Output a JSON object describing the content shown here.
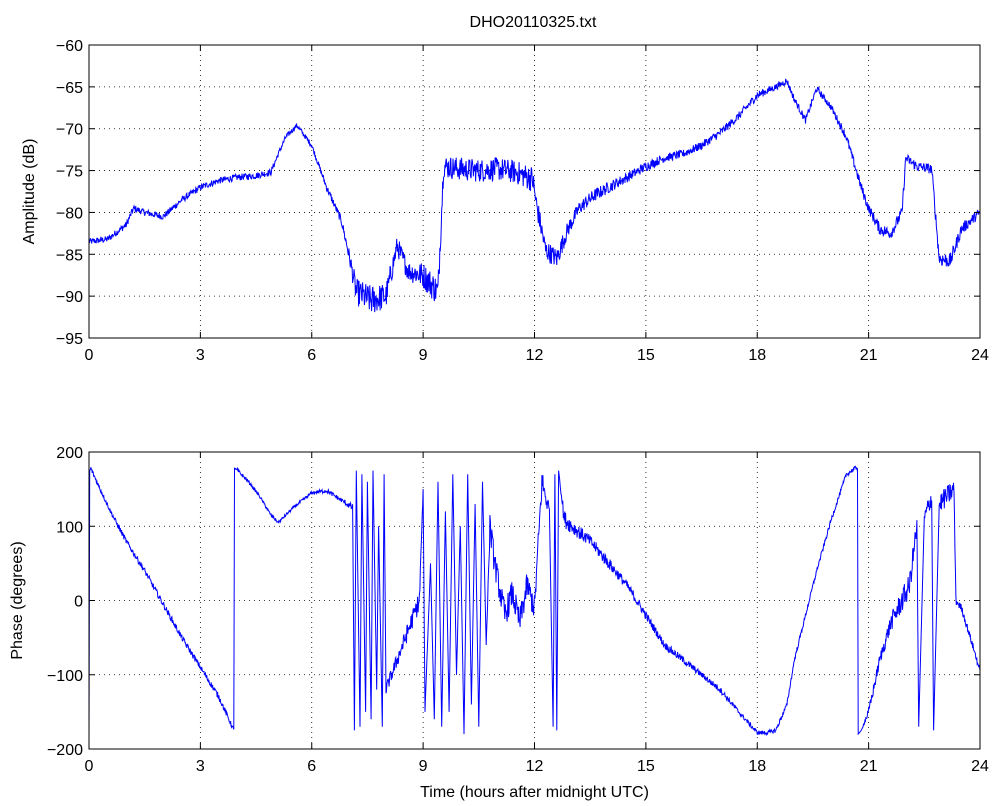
{
  "page": {
    "title": "DHO20110325.txt"
  },
  "colors": {
    "series": "#0000ff",
    "axes": "#000000",
    "background": "#ffffff"
  },
  "chart_data": [
    {
      "id": "amplitude",
      "type": "line",
      "title": "DHO20110325.txt",
      "xlabel": "",
      "ylabel": "Amplitude (dB)",
      "xlim": [
        0,
        24
      ],
      "ylim": [
        -95,
        -60
      ],
      "xticks": [
        0,
        3,
        6,
        9,
        12,
        15,
        18,
        21,
        24
      ],
      "yticks": [
        -95,
        -90,
        -85,
        -80,
        -75,
        -70,
        -65,
        -60
      ],
      "grid": true,
      "legend": "none",
      "series": [
        {
          "color": "#0000ff",
          "x": [
            0,
            0.5,
            1.0,
            1.2,
            1.5,
            2.0,
            2.5,
            3.0,
            3.5,
            4.0,
            4.5,
            4.9,
            5.1,
            5.3,
            5.6,
            6.0,
            6.4,
            6.8,
            7.0,
            7.2,
            7.6,
            8.0,
            8.3,
            8.6,
            9.0,
            9.4,
            9.55,
            10.0,
            10.5,
            11.0,
            11.5,
            11.95,
            12.05,
            12.3,
            12.6,
            12.9,
            13.2,
            13.6,
            14.0,
            14.5,
            15.0,
            15.5,
            16.0,
            16.5,
            17.0,
            17.5,
            18.0,
            18.5,
            18.8,
            19.0,
            19.3,
            19.6,
            20.0,
            20.4,
            20.8,
            21.0,
            21.3,
            21.6,
            21.9,
            22.0,
            22.3,
            22.7,
            22.9,
            23.2,
            23.5,
            24.0
          ],
          "y": [
            -83.5,
            -83.2,
            -81.5,
            -79.5,
            -80.0,
            -80.5,
            -78.5,
            -77.0,
            -76.2,
            -75.8,
            -75.6,
            -75.2,
            -73.0,
            -71.0,
            -69.6,
            -72.0,
            -77.0,
            -81.0,
            -85.0,
            -89.5,
            -90.5,
            -90.0,
            -84.0,
            -87.0,
            -87.5,
            -89.5,
            -74.5,
            -74.8,
            -75.0,
            -74.8,
            -75.2,
            -76.0,
            -79.0,
            -84.5,
            -85.5,
            -82.0,
            -79.5,
            -78.0,
            -77.0,
            -75.8,
            -74.5,
            -73.5,
            -73.0,
            -72.0,
            -70.5,
            -68.5,
            -66.0,
            -65.0,
            -64.3,
            -66.5,
            -69.0,
            -65.2,
            -67.5,
            -71.0,
            -77.0,
            -79.5,
            -82.0,
            -82.5,
            -80.0,
            -73.5,
            -74.5,
            -74.8,
            -85.5,
            -85.8,
            -82.0,
            -80.0
          ],
          "noise": [
            0.4,
            0.4,
            0.4,
            0.4,
            0.4,
            0.4,
            0.4,
            0.4,
            0.4,
            0.4,
            0.4,
            0.4,
            0.3,
            0.3,
            0.3,
            0.3,
            0.4,
            0.5,
            0.8,
            1.6,
            1.8,
            1.6,
            1.2,
            1.2,
            1.6,
            1.8,
            1.4,
            1.4,
            1.4,
            1.4,
            1.4,
            1.6,
            1.4,
            1.2,
            1.2,
            1.0,
            0.8,
            0.8,
            0.7,
            0.6,
            0.6,
            0.5,
            0.5,
            0.5,
            0.5,
            0.5,
            0.5,
            0.4,
            0.4,
            0.4,
            0.4,
            0.4,
            0.4,
            0.5,
            0.6,
            0.6,
            0.7,
            0.7,
            0.7,
            0.6,
            0.6,
            0.6,
            0.9,
            0.9,
            0.7,
            0.6
          ]
        }
      ]
    },
    {
      "id": "phase",
      "type": "line",
      "title": "",
      "xlabel": "Time (hours after midnight UTC)",
      "ylabel": "Phase (degrees)",
      "xlim": [
        0,
        24
      ],
      "ylim": [
        -200,
        200
      ],
      "xticks": [
        0,
        3,
        6,
        9,
        12,
        15,
        18,
        21,
        24
      ],
      "yticks": [
        -200,
        -100,
        0,
        100,
        200
      ],
      "grid": true,
      "legend": "none",
      "series": [
        {
          "color": "#0000ff",
          "x": [
            0,
            0.02,
            0.05,
            0.1,
            0.3,
            0.6,
            1.0,
            1.5,
            2.0,
            2.5,
            3.0,
            3.5,
            3.9,
            3.92,
            4.0,
            4.3,
            4.6,
            4.9,
            5.1,
            5.5,
            6.0,
            6.4,
            6.8,
            7.1,
            7.15,
            7.2,
            7.3,
            7.35,
            7.45,
            7.5,
            7.6,
            7.65,
            7.75,
            7.8,
            7.9,
            7.95,
            8.0,
            8.3,
            8.6,
            8.9,
            9.0,
            9.05,
            9.2,
            9.3,
            9.4,
            9.5,
            9.6,
            9.7,
            9.8,
            9.9,
            10.0,
            10.1,
            10.2,
            10.3,
            10.4,
            10.5,
            10.6,
            10.7,
            10.8,
            10.9,
            11.0,
            11.2,
            11.4,
            11.6,
            11.8,
            12.0,
            12.2,
            12.4,
            12.5,
            12.55,
            12.6,
            12.65,
            12.8,
            13.0,
            13.5,
            14.0,
            14.5,
            15.0,
            15.5,
            16.0,
            16.5,
            17.0,
            17.5,
            18.0,
            18.3,
            18.5,
            18.8,
            19.0,
            19.3,
            19.6,
            20.0,
            20.4,
            20.7,
            20.72,
            20.8,
            21.0,
            21.3,
            21.6,
            21.9,
            22.1,
            22.3,
            22.35,
            22.5,
            22.7,
            22.75,
            22.9,
            23.1,
            23.3,
            23.35,
            23.5,
            23.8,
            24.0
          ],
          "y": [
            -180,
            175,
            178,
            172,
            150,
            118,
            80,
            40,
            -5,
            -50,
            -90,
            -130,
            -175,
            178,
            175,
            160,
            140,
            115,
            105,
            125,
            145,
            148,
            135,
            125,
            -175,
            175,
            -170,
            170,
            -150,
            160,
            -160,
            175,
            -120,
            100,
            -170,
            170,
            -120,
            -80,
            -40,
            0,
            150,
            -150,
            50,
            -160,
            160,
            -170,
            120,
            -150,
            170,
            -100,
            100,
            -180,
            170,
            -140,
            130,
            -170,
            160,
            -60,
            100,
            60,
            30,
            -20,
            10,
            -30,
            20,
            -10,
            160,
            120,
            -170,
            170,
            -175,
            175,
            110,
            100,
            80,
            50,
            20,
            -20,
            -60,
            -80,
            -100,
            -120,
            -150,
            -178,
            -178,
            -175,
            -140,
            -80,
            -20,
            40,
            110,
            170,
            180,
            -180,
            -175,
            -150,
            -80,
            -30,
            0,
            20,
            100,
            -170,
            110,
            140,
            -175,
            130,
            140,
            150,
            0,
            -10,
            -60,
            -95
          ],
          "noise": [
            0,
            0,
            3,
            3,
            3,
            3,
            4,
            4,
            4,
            4,
            4,
            4,
            3,
            0,
            3,
            2,
            2,
            2,
            2,
            2,
            2,
            3,
            3,
            5,
            0,
            0,
            0,
            0,
            0,
            0,
            0,
            0,
            0,
            0,
            0,
            0,
            8,
            10,
            12,
            14,
            0,
            0,
            0,
            0,
            0,
            0,
            0,
            0,
            0,
            0,
            0,
            0,
            0,
            0,
            0,
            0,
            0,
            0,
            18,
            18,
            18,
            18,
            18,
            18,
            18,
            18,
            18,
            12,
            0,
            0,
            0,
            0,
            12,
            10,
            8,
            8,
            6,
            6,
            5,
            5,
            4,
            4,
            3,
            3,
            3,
            3,
            3,
            3,
            3,
            3,
            3,
            3,
            3,
            0,
            0,
            6,
            8,
            12,
            16,
            16,
            16,
            0,
            14,
            14,
            0,
            14,
            14,
            14,
            6,
            5,
            5,
            4
          ]
        }
      ]
    }
  ]
}
